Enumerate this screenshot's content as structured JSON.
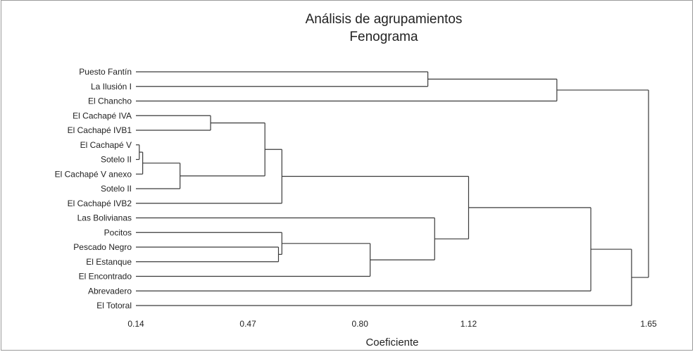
{
  "chart_data": {
    "type": "dendrogram",
    "title": "Análisis de agrupamientos",
    "subtitle": "Fenograma",
    "xlabel": "Coeficiente",
    "xlim": [
      0.14,
      1.65
    ],
    "xticks": [
      {
        "value": 0.14,
        "label": "0.14"
      },
      {
        "value": 0.47,
        "label": "0.47"
      },
      {
        "value": 0.8,
        "label": "0.80"
      },
      {
        "value": 1.12,
        "label": "1.12"
      },
      {
        "value": 1.65,
        "label": "1.65"
      }
    ],
    "leaves": [
      "Puesto Fantín",
      "La Ilusión I",
      "El Chancho",
      "El Cachapé IVA",
      "El Cachapé IVB1",
      "El Cachapé V",
      "Sotelo II",
      "El Cachapé V anexo",
      "Sotelo II",
      "El Cachapé IVB2",
      "Las Bolivianas",
      "Pocitos",
      "Pescado Negro",
      "El Estanque",
      "El Encontrado",
      "Abrevadero",
      "El Totoral"
    ],
    "merges": [
      {
        "id": "n1",
        "children": [
          5,
          6
        ],
        "height": 0.15
      },
      {
        "id": "n2",
        "children": [
          "n1",
          7
        ],
        "height": 0.16
      },
      {
        "id": "n3",
        "children": [
          "n2",
          8
        ],
        "height": 0.27
      },
      {
        "id": "n4",
        "children": [
          3,
          4
        ],
        "height": 0.36
      },
      {
        "id": "n5",
        "children": [
          "n4",
          "n3"
        ],
        "height": 0.52
      },
      {
        "id": "n6",
        "children": [
          "n5",
          9
        ],
        "height": 0.57
      },
      {
        "id": "n7",
        "children": [
          0,
          1
        ],
        "height": 1.0
      },
      {
        "id": "n8",
        "children": [
          "n7",
          2
        ],
        "height": 1.38
      },
      {
        "id": "n9",
        "children": [
          12,
          13
        ],
        "height": 0.56
      },
      {
        "id": "n10",
        "children": [
          11,
          "n9"
        ],
        "height": 0.57
      },
      {
        "id": "n11",
        "children": [
          "n10",
          14
        ],
        "height": 0.83
      },
      {
        "id": "n12",
        "children": [
          10,
          "n11"
        ],
        "height": 1.02
      },
      {
        "id": "n13",
        "children": [
          "n6",
          "n12"
        ],
        "height": 1.12
      },
      {
        "id": "n14",
        "children": [
          "n13",
          15
        ],
        "height": 1.48
      },
      {
        "id": "n15",
        "children": [
          "n14",
          16
        ],
        "height": 1.6
      },
      {
        "id": "n16",
        "children": [
          "n8",
          "n15"
        ],
        "height": 1.65
      }
    ]
  }
}
